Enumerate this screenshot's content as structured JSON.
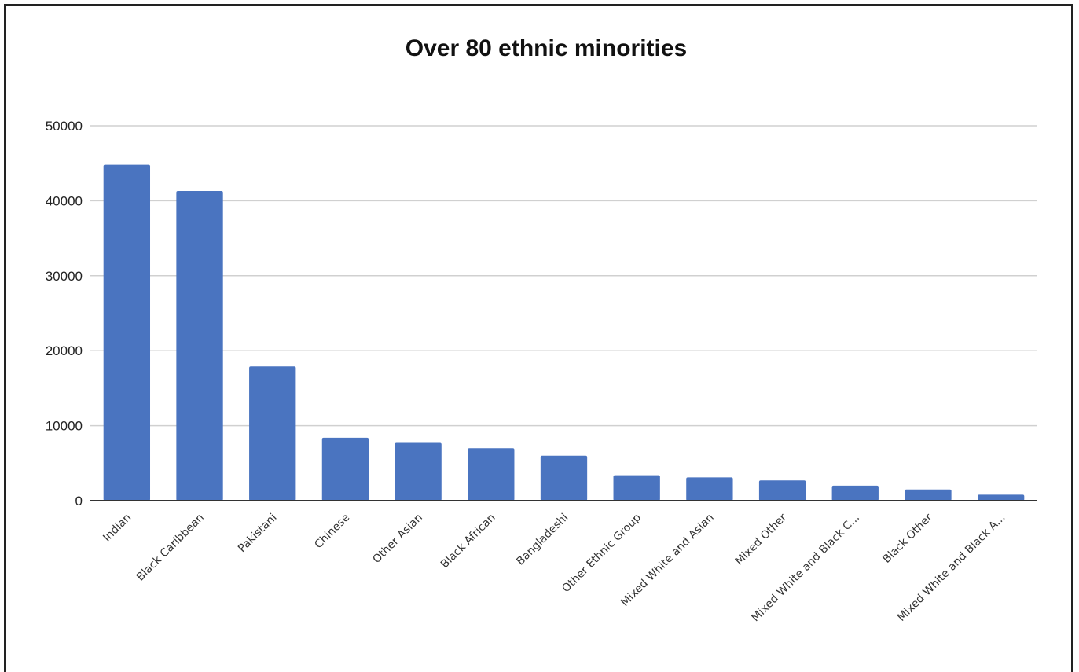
{
  "chart_data": {
    "type": "bar",
    "title": "Over 80 ethnic minorities",
    "xlabel": "",
    "ylabel": "",
    "ylim": [
      0,
      50000
    ],
    "yticks": [
      0,
      10000,
      20000,
      30000,
      40000,
      50000
    ],
    "ytick_labels": [
      "0",
      "10000",
      "20000",
      "30000",
      "40000",
      "50000"
    ],
    "grid": true,
    "legend": "none",
    "bar_color": "#4A74C0",
    "categories": [
      "Indian",
      "Black Caribbean",
      "Pakistani",
      "Chinese",
      "Other Asian",
      "Black African",
      "Bangladeshi",
      "Other Ethnic Group",
      "Mixed White and Asian",
      "Mixed Other",
      "Mixed White and Black C...",
      "Black Other",
      "Mixed White and Black A..."
    ],
    "values": [
      44800,
      41300,
      17900,
      8400,
      7700,
      7000,
      6000,
      3400,
      3100,
      2700,
      2000,
      1500,
      800
    ]
  }
}
